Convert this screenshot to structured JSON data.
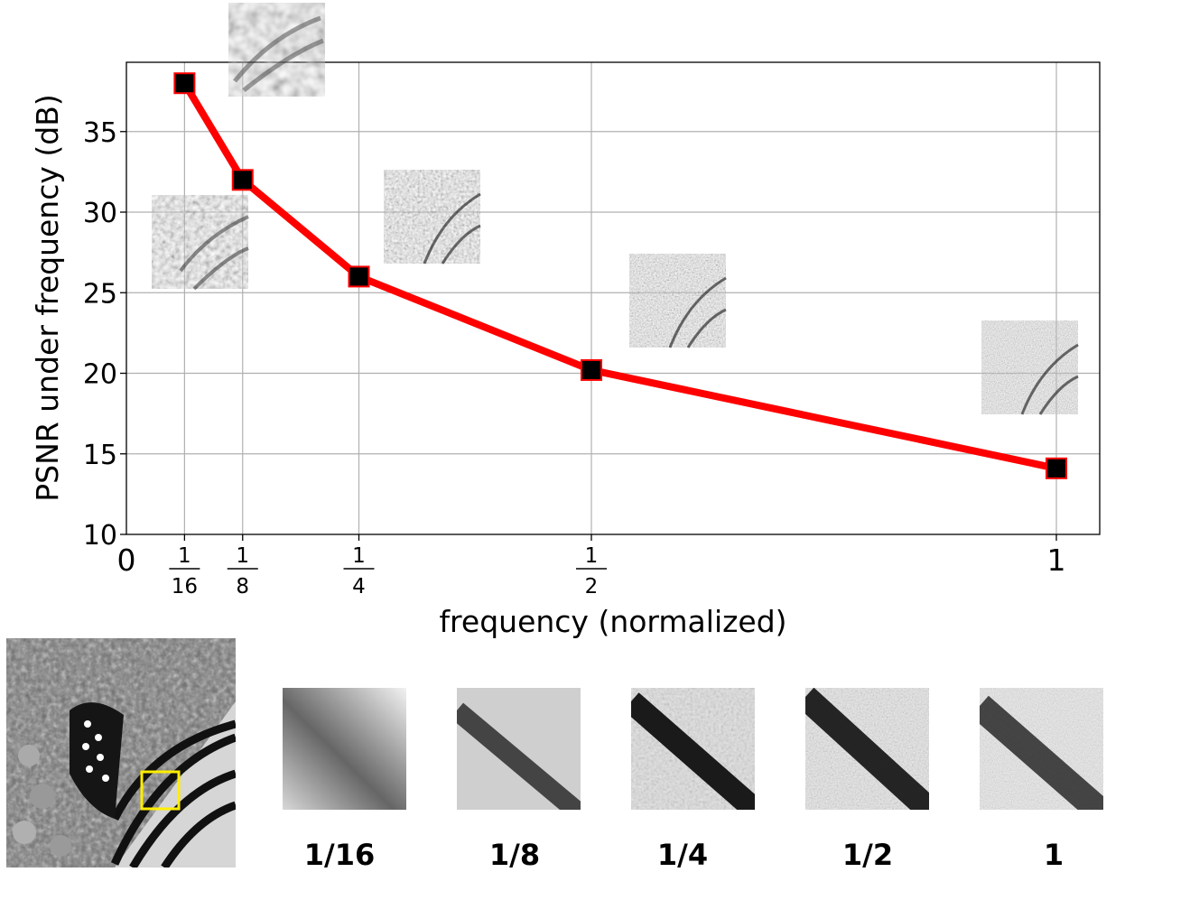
{
  "chart_data": {
    "type": "line",
    "xlabel": "frequency (normalized)",
    "ylabel": "PSNR under frequency (dB)",
    "x": [
      0.0625,
      0.125,
      0.25,
      0.5,
      1
    ],
    "y": [
      38,
      32,
      26,
      20.2,
      14.1
    ],
    "xlim": [
      0,
      1.045
    ],
    "ylim": [
      10,
      39.3
    ],
    "yticks": [
      10,
      15,
      20,
      25,
      30,
      35
    ],
    "ytick_labels": [
      "10",
      "15",
      "20",
      "25",
      "30",
      "35"
    ],
    "xtick_labels": [
      "0",
      "1/16",
      "1/8",
      "1/4",
      "1/2",
      "1"
    ],
    "xtick_fractions": [
      {
        "num": "1",
        "den": "16"
      },
      {
        "num": "1",
        "den": "8"
      },
      {
        "num": "1",
        "den": "4"
      },
      {
        "num": "1",
        "den": "2"
      }
    ],
    "grid": true,
    "line_color": "#ff0000",
    "marker_color": "#000000"
  },
  "patch_labels": [
    "1/16",
    "1/8",
    "1/4",
    "1/2",
    "1"
  ],
  "highlight_color": "#ffee00"
}
